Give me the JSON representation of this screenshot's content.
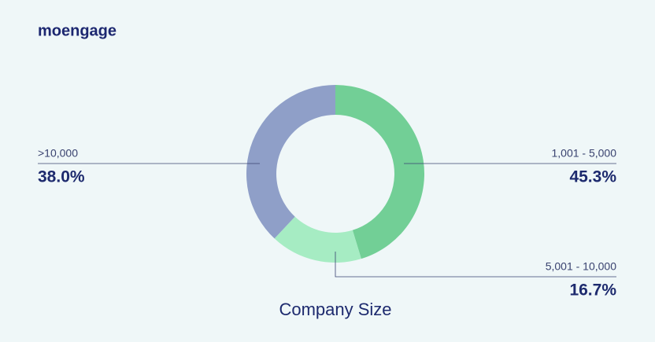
{
  "brand": "moengage",
  "chart_data": {
    "type": "donut",
    "title": "Company Size",
    "categories": [
      "1,001 - 5,000",
      "5,001 - 10,000",
      ">10,000"
    ],
    "values": [
      45.3,
      16.7,
      38.0
    ],
    "value_labels": [
      "45.3%",
      "16.7%",
      "38.0%"
    ],
    "colors": [
      "#72cf96",
      "#a6ecc3",
      "#8f9fc8"
    ]
  }
}
